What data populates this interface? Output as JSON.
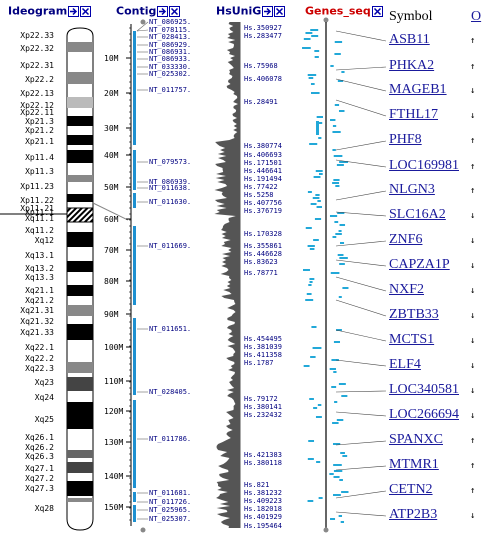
{
  "columns": {
    "ideogram": {
      "label": "Ideogram"
    },
    "contig": {
      "label": "Contig"
    },
    "hsunig": {
      "label": "HsUniG"
    },
    "genes_seq": {
      "label": "Genes_seq"
    },
    "symbol": {
      "label": "Symbol"
    },
    "orientation": {
      "label": "O"
    }
  },
  "colors": {
    "header_blue": "#000080",
    "header_red": "#cc0000",
    "link": "#1a1a9c",
    "contig_bar": "#1e90d0",
    "gene_box": "#22a8d8"
  },
  "bands": [
    "Xp22.33",
    "Xp22.32",
    "Xp22.31",
    "Xp22.2",
    "Xp22.13",
    "Xp22.12",
    "Xp22.11",
    "Xp21.3",
    "Xp21.2",
    "Xp21.1",
    "Xp11.4",
    "Xp11.3",
    "Xp11.23",
    "Xp11.22",
    "Xp11.21",
    "Xp11.1",
    "Xq11.1",
    "Xq11.2",
    "Xq12",
    "Xq13.1",
    "Xq13.2",
    "Xq13.3",
    "Xq21.1",
    "Xq21.2",
    "Xq21.31",
    "Xq21.32",
    "Xq21.33",
    "Xq22.1",
    "Xq22.2",
    "Xq22.3",
    "Xq23",
    "Xq24",
    "Xq25",
    "Xq26.1",
    "Xq26.2",
    "Xq26.3",
    "Xq27.1",
    "Xq27.2",
    "Xq27.3",
    "Xq28"
  ],
  "scale": [
    "10M",
    "20M",
    "30M",
    "40M",
    "50M",
    "60M",
    "70M",
    "80M",
    "90M",
    "100M",
    "110M",
    "120M",
    "130M",
    "140M",
    "150M"
  ],
  "contigs": [
    "NT_086925.",
    "NT_078115.",
    "NT_028413.",
    "NT_086929.",
    "NT_086931.",
    "NT_086933.",
    "NT_033330.",
    "NT_025302.",
    "NT_011757.",
    "NT_079573.",
    "NT_086939.",
    "NT_011638.",
    "NT_011630.",
    "NT_011669.",
    "NT_011651.",
    "NT_028405.",
    "NT_011786.",
    "NT_011681.",
    "NT_011726.",
    "NT_025965.",
    "NT_025307."
  ],
  "unigenes": [
    "Hs.350927",
    "Hs.283477",
    "Hs.75968",
    "Hs.406078",
    "Hs.28491",
    "Hs.380774",
    "Hs.406693",
    "Hs.171501",
    "Hs.446641",
    "Hs.191494",
    "Hs.77422",
    "Hs.5258",
    "Hs.407756",
    "Hs.376719",
    "Hs.170328",
    "Hs.355861",
    "Hs.446628",
    "Hs.83623",
    "Hs.78771",
    "Hs.454495",
    "Hs.381039",
    "Hs.411358",
    "Hs.1787",
    "Hs.79172",
    "Hs.380141",
    "Hs.232432",
    "Hs.421383",
    "Hs.380118",
    "Hs.821",
    "Hs.381232",
    "Hs.409223",
    "Hs.182018",
    "Hs.401929",
    "Hs.195464"
  ],
  "genes": [
    {
      "symbol": "ASB11",
      "orient": "↑"
    },
    {
      "symbol": "PHKA2",
      "orient": "↑"
    },
    {
      "symbol": "MAGEB1",
      "orient": "↓"
    },
    {
      "symbol": "FTHL17",
      "orient": "↓"
    },
    {
      "symbol": "PHF8",
      "orient": "↑"
    },
    {
      "symbol": "LOC169981",
      "orient": "↑"
    },
    {
      "symbol": "NLGN3",
      "orient": "↑"
    },
    {
      "symbol": "SLC16A2",
      "orient": "↓"
    },
    {
      "symbol": "ZNF6",
      "orient": "↓"
    },
    {
      "symbol": "CAPZA1P",
      "orient": "↓"
    },
    {
      "symbol": "NXF2",
      "orient": "↓"
    },
    {
      "symbol": "ZBTB33",
      "orient": "↓"
    },
    {
      "symbol": "MCTS1",
      "orient": "↓"
    },
    {
      "symbol": "ELF4",
      "orient": "↓"
    },
    {
      "symbol": "LOC340581",
      "orient": "↓"
    },
    {
      "symbol": "LOC266694",
      "orient": "↓"
    },
    {
      "symbol": "SPANXC",
      "orient": "↑"
    },
    {
      "symbol": "MTMR1",
      "orient": "↑"
    },
    {
      "symbol": "CETN2",
      "orient": "↑"
    },
    {
      "symbol": "ATP2B3",
      "orient": "↓"
    }
  ],
  "icons": {
    "arrow": "right-arrow-icon",
    "close": "close-x-icon"
  }
}
